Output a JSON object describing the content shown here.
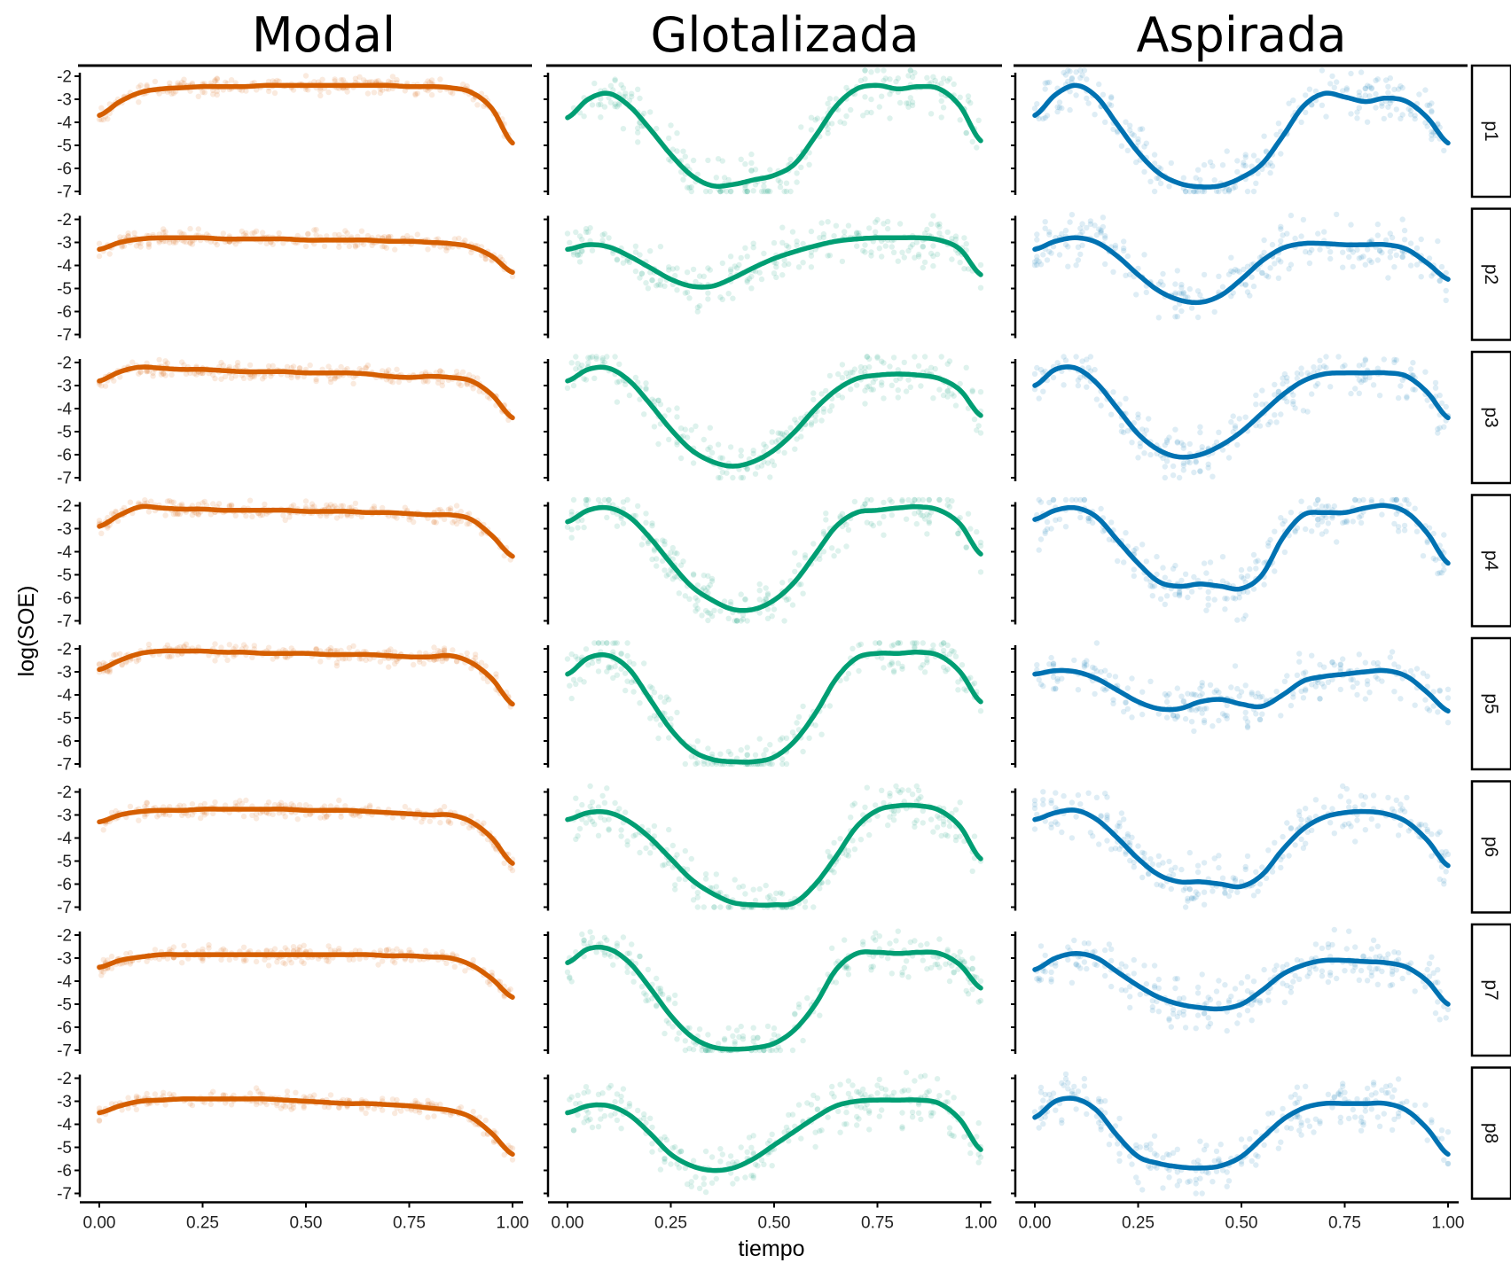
{
  "chart_data": {
    "type": "scatter",
    "xlabel": "tiempo",
    "ylabel": "log(SOE)",
    "xlim": [
      0,
      1
    ],
    "ylim": [
      -7,
      -2
    ],
    "x_ticks": [
      "0.00",
      "0.25",
      "0.50",
      "0.75",
      "1.00"
    ],
    "y_ticks": [
      "-2",
      "-3",
      "-4",
      "-5",
      "-6",
      "-7"
    ],
    "x_values": [
      0,
      0.05,
      0.1,
      0.15,
      0.2,
      0.25,
      0.3,
      0.35,
      0.4,
      0.45,
      0.5,
      0.55,
      0.6,
      0.65,
      0.7,
      0.75,
      0.8,
      0.85,
      0.9,
      0.95,
      1
    ],
    "columns": [
      {
        "name": "Modal",
        "color": "#d55e00"
      },
      {
        "name": "Glotalizada",
        "color": "#009e73"
      },
      {
        "name": "Aspirada",
        "color": "#0072b2"
      }
    ],
    "rows": [
      "p1",
      "p2",
      "p3",
      "p4",
      "p5",
      "p6",
      "p7",
      "p8"
    ],
    "smooth_lines": {
      "Modal": {
        "p1": [
          -3.7,
          -3.1,
          -2.7,
          -2.55,
          -2.5,
          -2.45,
          -2.45,
          -2.45,
          -2.4,
          -2.4,
          -2.4,
          -2.4,
          -2.4,
          -2.4,
          -2.4,
          -2.45,
          -2.45,
          -2.5,
          -2.7,
          -3.4,
          -4.9
        ],
        "p2": [
          -3.3,
          -3.0,
          -2.85,
          -2.8,
          -2.8,
          -2.8,
          -2.85,
          -2.85,
          -2.85,
          -2.85,
          -2.9,
          -2.9,
          -2.9,
          -2.9,
          -2.95,
          -2.95,
          -3.0,
          -3.05,
          -3.2,
          -3.6,
          -4.3
        ],
        "p3": [
          -2.8,
          -2.4,
          -2.2,
          -2.25,
          -2.3,
          -2.3,
          -2.35,
          -2.4,
          -2.4,
          -2.4,
          -2.45,
          -2.45,
          -2.45,
          -2.5,
          -2.6,
          -2.65,
          -2.6,
          -2.65,
          -2.8,
          -3.4,
          -4.4
        ],
        "p4": [
          -2.9,
          -2.4,
          -2.05,
          -2.1,
          -2.15,
          -2.15,
          -2.2,
          -2.2,
          -2.2,
          -2.2,
          -2.25,
          -2.25,
          -2.25,
          -2.3,
          -2.3,
          -2.35,
          -2.4,
          -2.4,
          -2.6,
          -3.3,
          -4.2
        ],
        "p5": [
          -2.9,
          -2.5,
          -2.2,
          -2.1,
          -2.1,
          -2.1,
          -2.15,
          -2.15,
          -2.2,
          -2.2,
          -2.2,
          -2.25,
          -2.25,
          -2.25,
          -2.3,
          -2.35,
          -2.35,
          -2.3,
          -2.6,
          -3.3,
          -4.4
        ],
        "p6": [
          -3.3,
          -3.0,
          -2.85,
          -2.8,
          -2.8,
          -2.75,
          -2.75,
          -2.75,
          -2.75,
          -2.75,
          -2.8,
          -2.8,
          -2.8,
          -2.85,
          -2.9,
          -2.95,
          -3.0,
          -3.0,
          -3.3,
          -4.0,
          -5.1
        ],
        "p7": [
          -3.4,
          -3.1,
          -2.95,
          -2.85,
          -2.85,
          -2.85,
          -2.85,
          -2.85,
          -2.85,
          -2.85,
          -2.85,
          -2.85,
          -2.85,
          -2.85,
          -2.9,
          -2.9,
          -2.95,
          -3.0,
          -3.3,
          -3.9,
          -4.7
        ],
        "p8": [
          -3.5,
          -3.2,
          -3.0,
          -2.95,
          -2.9,
          -2.9,
          -2.9,
          -2.9,
          -2.9,
          -2.95,
          -3.0,
          -3.05,
          -3.1,
          -3.1,
          -3.15,
          -3.2,
          -3.3,
          -3.4,
          -3.7,
          -4.4,
          -5.3
        ]
      },
      "Glotalizada": {
        "p1": [
          -3.8,
          -3.0,
          -2.75,
          -3.3,
          -4.3,
          -5.4,
          -6.3,
          -6.75,
          -6.7,
          -6.5,
          -6.3,
          -5.8,
          -4.6,
          -3.3,
          -2.55,
          -2.4,
          -2.55,
          -2.45,
          -2.55,
          -3.3,
          -4.8
        ],
        "p2": [
          -3.3,
          -3.1,
          -3.2,
          -3.6,
          -4.1,
          -4.6,
          -4.9,
          -4.9,
          -4.55,
          -4.1,
          -3.7,
          -3.4,
          -3.15,
          -2.95,
          -2.85,
          -2.8,
          -2.8,
          -2.8,
          -2.9,
          -3.3,
          -4.4
        ],
        "p3": [
          -2.8,
          -2.3,
          -2.25,
          -2.8,
          -3.8,
          -4.9,
          -5.8,
          -6.3,
          -6.5,
          -6.3,
          -5.8,
          -5.0,
          -4.0,
          -3.2,
          -2.7,
          -2.55,
          -2.5,
          -2.55,
          -2.7,
          -3.2,
          -4.3
        ],
        "p4": [
          -2.7,
          -2.2,
          -2.1,
          -2.5,
          -3.4,
          -4.5,
          -5.5,
          -6.1,
          -6.5,
          -6.5,
          -6.1,
          -5.3,
          -4.1,
          -2.9,
          -2.3,
          -2.2,
          -2.1,
          -2.05,
          -2.2,
          -2.8,
          -4.1
        ],
        "p5": [
          -3.1,
          -2.4,
          -2.3,
          -2.9,
          -4.2,
          -5.5,
          -6.4,
          -6.8,
          -6.9,
          -6.9,
          -6.7,
          -6.0,
          -4.8,
          -3.3,
          -2.4,
          -2.2,
          -2.2,
          -2.15,
          -2.3,
          -3.0,
          -4.3
        ],
        "p6": [
          -3.2,
          -2.9,
          -2.9,
          -3.3,
          -4.0,
          -4.9,
          -5.8,
          -6.4,
          -6.8,
          -6.9,
          -6.9,
          -6.8,
          -6.0,
          -4.8,
          -3.5,
          -2.8,
          -2.6,
          -2.6,
          -2.8,
          -3.5,
          -4.9
        ],
        "p7": [
          -3.2,
          -2.6,
          -2.6,
          -3.2,
          -4.3,
          -5.5,
          -6.4,
          -6.85,
          -6.95,
          -6.9,
          -6.7,
          -6.1,
          -5.0,
          -3.5,
          -2.8,
          -2.75,
          -2.8,
          -2.75,
          -2.8,
          -3.3,
          -4.3
        ],
        "p8": [
          -3.5,
          -3.2,
          -3.2,
          -3.6,
          -4.4,
          -5.3,
          -5.8,
          -6.0,
          -5.9,
          -5.5,
          -4.9,
          -4.3,
          -3.7,
          -3.2,
          -3.0,
          -2.95,
          -2.95,
          -2.95,
          -3.1,
          -3.8,
          -5.1
        ]
      },
      "Aspirada": {
        "p1": [
          -3.7,
          -2.8,
          -2.4,
          -2.9,
          -4.1,
          -5.3,
          -6.2,
          -6.65,
          -6.8,
          -6.75,
          -6.4,
          -5.8,
          -4.6,
          -3.3,
          -2.75,
          -2.9,
          -3.1,
          -2.95,
          -3.1,
          -3.8,
          -4.9
        ],
        "p2": [
          -3.3,
          -2.95,
          -2.8,
          -3.0,
          -3.6,
          -4.4,
          -5.1,
          -5.5,
          -5.6,
          -5.3,
          -4.6,
          -3.8,
          -3.25,
          -3.05,
          -3.05,
          -3.1,
          -3.1,
          -3.1,
          -3.3,
          -3.9,
          -4.6
        ],
        "p3": [
          -3.0,
          -2.3,
          -2.25,
          -2.9,
          -4.0,
          -5.1,
          -5.8,
          -6.1,
          -6.0,
          -5.6,
          -5.0,
          -4.2,
          -3.4,
          -2.8,
          -2.5,
          -2.45,
          -2.45,
          -2.45,
          -2.6,
          -3.3,
          -4.4
        ],
        "p4": [
          -2.6,
          -2.2,
          -2.1,
          -2.5,
          -3.5,
          -4.5,
          -5.3,
          -5.5,
          -5.4,
          -5.5,
          -5.6,
          -5.0,
          -3.4,
          -2.4,
          -2.3,
          -2.3,
          -2.1,
          -2.0,
          -2.3,
          -3.2,
          -4.5
        ],
        "p5": [
          -3.1,
          -2.95,
          -3.0,
          -3.3,
          -3.8,
          -4.3,
          -4.6,
          -4.6,
          -4.3,
          -4.2,
          -4.4,
          -4.5,
          -4.0,
          -3.4,
          -3.2,
          -3.1,
          -3.0,
          -2.95,
          -3.2,
          -3.9,
          -4.7
        ],
        "p6": [
          -3.2,
          -2.9,
          -2.8,
          -3.2,
          -4.0,
          -4.9,
          -5.6,
          -5.9,
          -5.9,
          -6.0,
          -6.1,
          -5.6,
          -4.5,
          -3.6,
          -3.1,
          -2.9,
          -2.85,
          -2.95,
          -3.3,
          -4.1,
          -5.2
        ],
        "p7": [
          -3.5,
          -3.0,
          -2.8,
          -3.0,
          -3.6,
          -4.2,
          -4.7,
          -5.0,
          -5.15,
          -5.2,
          -5.0,
          -4.4,
          -3.7,
          -3.3,
          -3.1,
          -3.1,
          -3.15,
          -3.2,
          -3.4,
          -4.0,
          -5.0
        ],
        "p8": [
          -3.7,
          -3.0,
          -2.9,
          -3.4,
          -4.5,
          -5.4,
          -5.7,
          -5.85,
          -5.9,
          -5.8,
          -5.4,
          -4.6,
          -3.8,
          -3.3,
          -3.1,
          -3.1,
          -3.1,
          -3.1,
          -3.4,
          -4.2,
          -5.3
        ]
      }
    },
    "grid": false,
    "legend": "none"
  }
}
